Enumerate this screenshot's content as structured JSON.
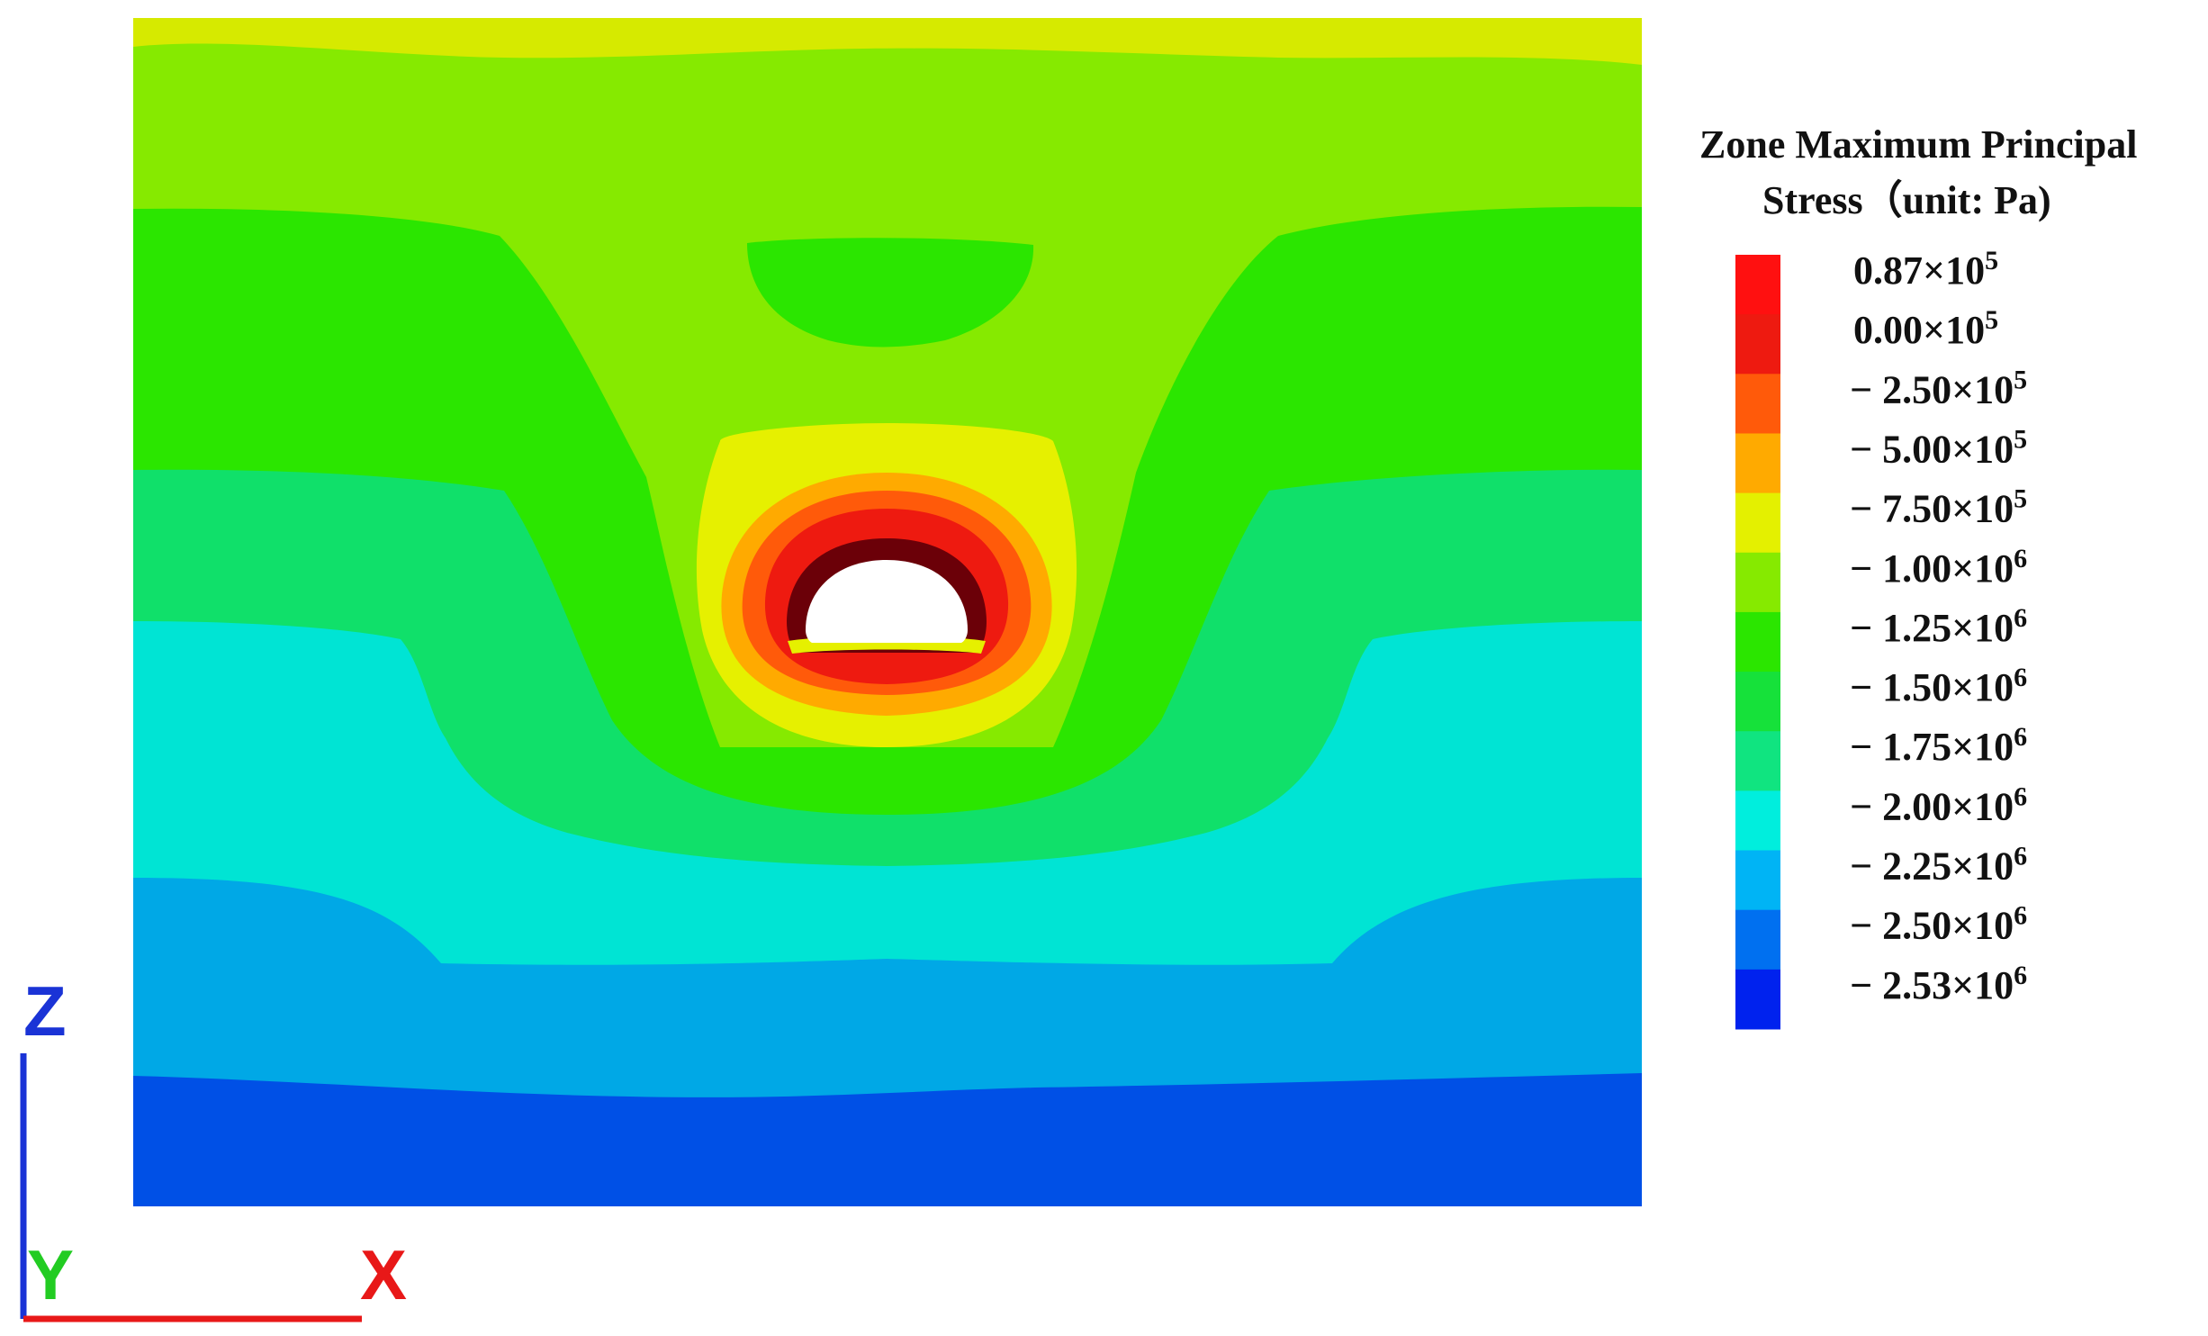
{
  "legend": {
    "title_line1": "Zone Maximum Principal",
    "title_line2": "Stress（unit: Pa)",
    "entries": [
      {
        "color": "#ff1010",
        "label": {
          "sign": "",
          "mantissa": "0.87",
          "base": "×10",
          "exp": "5"
        }
      },
      {
        "color": "#ee1a10",
        "label": {
          "sign": "",
          "mantissa": "0.00",
          "base": "×10",
          "exp": "5"
        }
      },
      {
        "color": "#ff5a0a",
        "label": {
          "sign": "− ",
          "mantissa": "2.50",
          "base": "×10",
          "exp": "5"
        }
      },
      {
        "color": "#ffaa00",
        "label": {
          "sign": "− ",
          "mantissa": "5.00",
          "base": "×10",
          "exp": "5"
        }
      },
      {
        "color": "#e4f000",
        "label": {
          "sign": "− ",
          "mantissa": "7.50",
          "base": "×10",
          "exp": "5"
        }
      },
      {
        "color": "#86ea00",
        "label": {
          "sign": "− ",
          "mantissa": "1.00",
          "base": "×10",
          "exp": "6"
        }
      },
      {
        "color": "#2be600",
        "label": {
          "sign": "− ",
          "mantissa": "1.25",
          "base": "×10",
          "exp": "6"
        }
      },
      {
        "color": "#16e13a",
        "label": {
          "sign": "− ",
          "mantissa": "1.50",
          "base": "×10",
          "exp": "6"
        }
      },
      {
        "color": "#10e480",
        "label": {
          "sign": "− ",
          "mantissa": "1.75",
          "base": "×10",
          "exp": "6"
        }
      },
      {
        "color": "#00eedd",
        "label": {
          "sign": "− ",
          "mantissa": "2.00",
          "base": "×10",
          "exp": "6"
        }
      },
      {
        "color": "#00b4f5",
        "label": {
          "sign": "− ",
          "mantissa": "2.25",
          "base": "×10",
          "exp": "6"
        }
      },
      {
        "color": "#0070f0",
        "label": {
          "sign": "− ",
          "mantissa": "2.50",
          "base": "×10",
          "exp": "6"
        }
      },
      {
        "color": "#0022ee",
        "label": {
          "sign": "− ",
          "mantissa": "2.53",
          "base": "×10",
          "exp": "6"
        }
      }
    ]
  },
  "axes": {
    "z_label": "Z",
    "y_label": "Y",
    "x_label": "X",
    "z_color": "#1a33d6",
    "y_color": "#22cc22",
    "x_color": "#e81818"
  },
  "contour_colors": {
    "top_yellow": "#d6ea00",
    "light_green": "#86ea00",
    "bright_green": "#2be600",
    "green_teal": "#10e06a",
    "aqua": "#00e4d4",
    "sky_blue": "#00a8e6",
    "deep_blue": "#0050e6",
    "yellow_ring": "#e6f000",
    "orange_ring": "#ffaa00",
    "dark_orange_ring": "#ff5a0a",
    "red_ring": "#ee1a10",
    "maroon_ring": "#6b0008",
    "cavity": "#ffffff"
  }
}
